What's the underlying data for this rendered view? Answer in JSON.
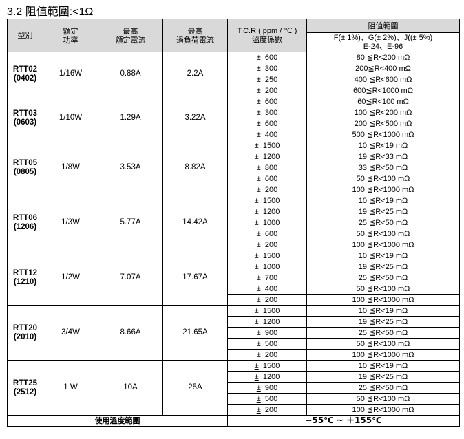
{
  "title": "3.2 阻值範圍:<1Ω",
  "headers": {
    "model": "型別",
    "power": "額定\n功率",
    "rated_current": "最高\n額定電流",
    "overload_current": "最高\n過負荷電流",
    "tcr": "T.C.R ( ppm / ℃ )\n溫度係數",
    "range": "阻值範圍",
    "tolerance": "F(± 1%)、G(± 2%)、J((± 5%)\nE-24、E-96"
  },
  "groups": [
    {
      "model": "RTT02\n(0402)",
      "power": "1/16W",
      "rated": "0.88A",
      "overload": "2.2A",
      "rows": [
        [
          "600",
          "80 ≦R<200 mΩ"
        ],
        [
          "300",
          "200≦R<400 mΩ"
        ],
        [
          "250",
          "400 ≦R<600 mΩ"
        ],
        [
          "200",
          "600≦R<1000 mΩ"
        ]
      ]
    },
    {
      "model": "RTT03\n(0603)",
      "power": "1/10W",
      "rated": "1.29A",
      "overload": "3.22A",
      "rows": [
        [
          "600",
          "60≦R<100 mΩ"
        ],
        [
          "300",
          "100 ≦R<200 mΩ"
        ],
        [
          "600",
          "200 ≦R<500 mΩ"
        ],
        [
          "400",
          "500 ≦R<1000 mΩ"
        ]
      ]
    },
    {
      "model": "RTT05\n(0805)",
      "power": "1/8W",
      "rated": "3.53A",
      "overload": "8.82A",
      "rows": [
        [
          "1500",
          "10 ≦R<19 mΩ"
        ],
        [
          "1200",
          "19 ≦R<33 mΩ"
        ],
        [
          "800",
          "33 ≦R<50 mΩ"
        ],
        [
          "600",
          "50 ≦R<100 mΩ"
        ],
        [
          "200",
          "100 ≦R<1000 mΩ"
        ]
      ]
    },
    {
      "model": "RTT06\n(1206)",
      "power": "1/3W",
      "rated": "5.77A",
      "overload": "14.42A",
      "rows": [
        [
          "1500",
          "10 ≦R<19 mΩ"
        ],
        [
          "1200",
          "19 ≦R<25 mΩ"
        ],
        [
          "1000",
          "25 ≦R<50 mΩ"
        ],
        [
          "600",
          "50 ≦R<100 mΩ"
        ],
        [
          "200",
          "100 ≦R<1000 mΩ"
        ]
      ]
    },
    {
      "model": "RTT12\n(1210)",
      "power": "1/2W",
      "rated": "7.07A",
      "overload": "17.67A",
      "rows": [
        [
          "1500",
          "10 ≦R<19 mΩ"
        ],
        [
          "1000",
          "19 ≦R<25 mΩ"
        ],
        [
          "700",
          "25 ≦R<50 mΩ"
        ],
        [
          "400",
          "50 ≦R<100 mΩ"
        ],
        [
          "200",
          "100 ≦R<1000 mΩ"
        ]
      ]
    },
    {
      "model": "RTT20\n(2010)",
      "power": "3/4W",
      "rated": "8.66A",
      "overload": "21.65A",
      "rows": [
        [
          "1500",
          "10 ≦R<19 mΩ"
        ],
        [
          "1200",
          "19 ≦R<25 mΩ"
        ],
        [
          "900",
          "25 ≦R<50 mΩ"
        ],
        [
          "500",
          "50 ≦R<100 mΩ"
        ],
        [
          "200",
          "100 ≦R<1000 mΩ"
        ]
      ]
    },
    {
      "model": "RTT25\n(2512)",
      "power": "1 W",
      "rated": "10A",
      "overload": "25A",
      "rows": [
        [
          "1500",
          "10 ≦R<19 mΩ"
        ],
        [
          "1200",
          "19 ≦R<25 mΩ"
        ],
        [
          "900",
          "25 ≦R<50 mΩ"
        ],
        [
          "500",
          "50 ≦R<100 mΩ"
        ],
        [
          "200",
          "100 ≦R<1000 mΩ"
        ]
      ]
    }
  ],
  "pm_sign": "±",
  "footer": {
    "label": "使用溫度範圍",
    "value": "−55℃ ~ ＋155℃"
  }
}
